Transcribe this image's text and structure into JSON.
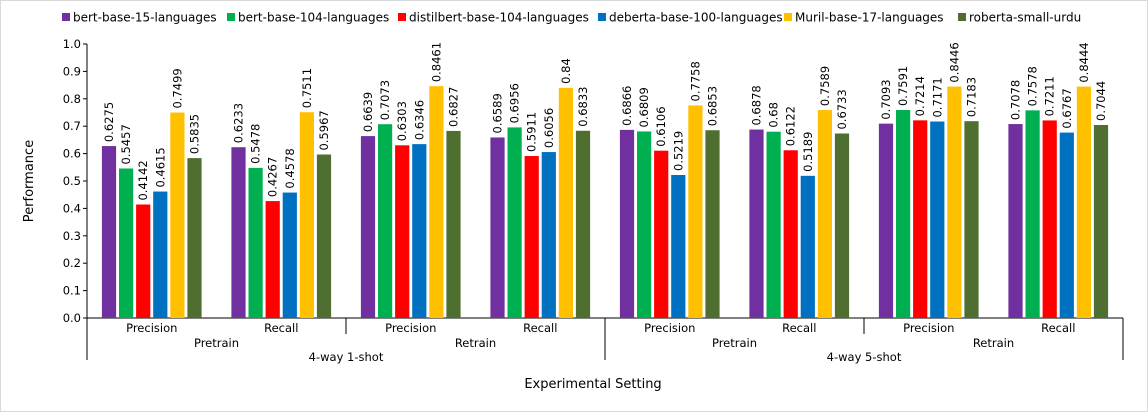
{
  "chart_data": {
    "type": "bar",
    "title": "",
    "ylabel": "Performance",
    "xlabel": "Experimental Setting",
    "ylim": [
      0,
      1.0
    ],
    "yticks": [
      "0.0",
      "0.1",
      "0.2",
      "0.3",
      "0.4",
      "0.5",
      "0.6",
      "0.7",
      "0.8",
      "0.9",
      "1.0"
    ],
    "legend_position": "top",
    "grid": false,
    "groups": [
      {
        "label": "4-way 1-shot",
        "phases": [
          {
            "label": "Pretrain",
            "metrics": [
              "Precision",
              "Recall"
            ]
          },
          {
            "label": "Retrain",
            "metrics": [
              "Precision",
              "Recall"
            ]
          }
        ]
      },
      {
        "label": "4-way 5-shot",
        "phases": [
          {
            "label": "Pretrain",
            "metrics": [
              "Precision",
              "Recall"
            ]
          },
          {
            "label": "Retrain",
            "metrics": [
              "Precision",
              "Recall"
            ]
          }
        ]
      }
    ],
    "series": [
      {
        "name": "bert-base-15-languages",
        "color": "#7030a0",
        "values": [
          "0.6275",
          "0.6233",
          "0.6639",
          "0.6589",
          "0.6866",
          "0.6878",
          "0.7093",
          "0.7078"
        ]
      },
      {
        "name": "bert-base-104-languages",
        "color": "#00b050",
        "values": [
          "0.5457",
          "0.5478",
          "0.7073",
          "0.6956",
          "0.6809",
          "0.68",
          "0.7591",
          "0.7578"
        ]
      },
      {
        "name": "distilbert-base-104-languages",
        "color": "#ff0000",
        "values": [
          "0.4142",
          "0.4267",
          "0.6303",
          "0.5911",
          "0.6106",
          "0.6122",
          "0.7214",
          "0.7211"
        ]
      },
      {
        "name": "deberta-base-100-languages",
        "color": "#0070c0",
        "values": [
          "0.4615",
          "0.4578",
          "0.6346",
          "0.6056",
          "0.5219",
          "0.5189",
          "0.7171",
          "0.6767"
        ]
      },
      {
        "name": "Muril-base-17-languages",
        "color": "#ffc000",
        "values": [
          "0.7499",
          "0.7511",
          "0.8461",
          "0.84",
          "0.7758",
          "0.7589",
          "0.8446",
          "0.8444"
        ]
      },
      {
        "name": "roberta-small-urdu",
        "color": "#4e6f30",
        "values": [
          "0.5835",
          "0.5967",
          "0.6827",
          "0.6833",
          "0.6853",
          "0.6733",
          "0.7183",
          "0.7044"
        ]
      }
    ]
  }
}
